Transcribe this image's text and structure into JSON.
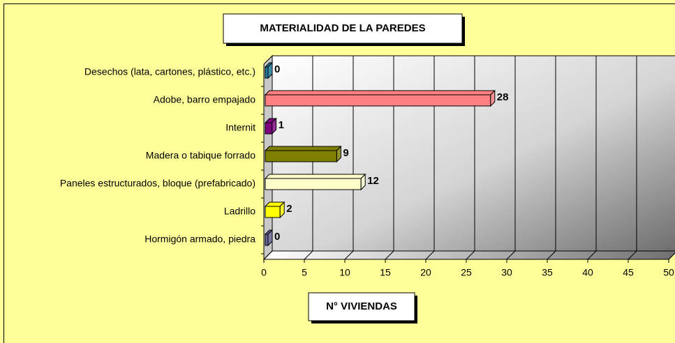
{
  "chart_data": {
    "type": "bar3d",
    "title": "MATERIALIDAD DE LA PAREDES",
    "x_label": "N° VIVIENDAS",
    "categories": [
      "Desechos (lata, cartones, plástico, etc.)",
      "Adobe, barro empajado",
      "Internit",
      "Madera o tabique forrado",
      "Paneles estructurados, bloque (prefabricado)",
      "Ladrillo",
      "Hormigón armado, piedra"
    ],
    "values": [
      0,
      28,
      1,
      9,
      12,
      2,
      0
    ],
    "colors": [
      "#1f7fa0",
      "#ff8080",
      "#800080",
      "#808000",
      "#ffffcc",
      "#ffff00",
      "#666699"
    ],
    "xlim": [
      0,
      50
    ],
    "xticks": [
      0,
      5,
      10,
      15,
      20,
      25,
      30,
      35,
      40,
      45,
      50
    ],
    "grid": true
  }
}
